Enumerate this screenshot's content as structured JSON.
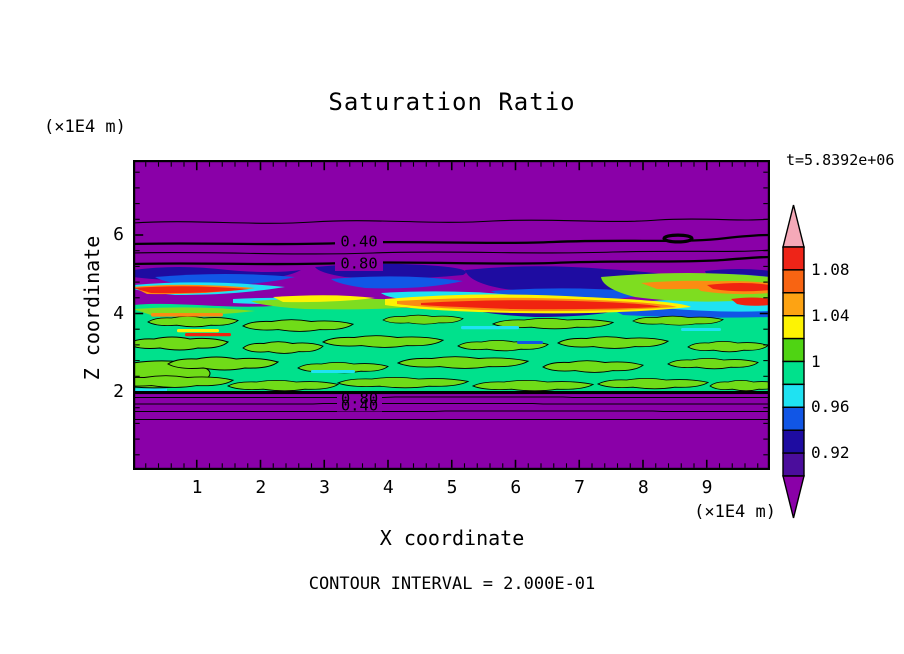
{
  "title": "Saturation Ratio",
  "time_label": "t=5.8392e+06",
  "footer": "CONTOUR INTERVAL = 2.000E-01",
  "axes": {
    "x_label": "X coordinate",
    "x_unit": "(×1E4 m)",
    "y_label": "Z coordinate",
    "y_unit": "(×1E4 m)",
    "x_ticks": [
      "1",
      "2",
      "3",
      "4",
      "5",
      "6",
      "7",
      "8",
      "9"
    ],
    "y_ticks": [
      "2",
      "4",
      "6"
    ]
  },
  "contour_labels": {
    "upper": [
      "0.40",
      "0.80"
    ],
    "lower": [
      "0.80",
      "0.40"
    ]
  },
  "colorbar": {
    "labels": [
      "1.08",
      "1.04",
      "1",
      "0.96",
      "0.92"
    ],
    "over_color": "#f5a9b8",
    "under_color": "#8a00a8",
    "cells": [
      {
        "color": "#ee2418",
        "range": "1.08-1.10"
      },
      {
        "color": "#f86412",
        "range": "1.06-1.08"
      },
      {
        "color": "#fda313",
        "range": "1.04-1.06"
      },
      {
        "color": "#fdf303",
        "range": "1.02-1.04"
      },
      {
        "color": "#4fd413",
        "range": "1.00-1.02"
      },
      {
        "color": "#00e18c",
        "range": "0.98-1.00"
      },
      {
        "color": "#1fe2f2",
        "range": "0.96-0.98"
      },
      {
        "color": "#1156e6",
        "range": "0.94-0.96"
      },
      {
        "color": "#1e0ca1",
        "range": "0.92-0.94"
      },
      {
        "color": "#4b0d9c",
        "range": "0.90-0.92"
      }
    ]
  },
  "field_colors": {
    "background": "#8a00a8",
    "band": "#00e18c",
    "blob": "#70dc18",
    "navy": "#1e0ca1",
    "blue": "#1156e6",
    "cyan": "#1fe2f2",
    "green": "#7edd20",
    "yellow": "#fdf303",
    "orange": "#fb8c12",
    "red": "#f02310"
  },
  "chart_data": {
    "type": "filled_contour",
    "variable": "saturation ratio",
    "title": "Saturation Ratio",
    "time_annotation": "t=5.8392e+06",
    "xlabel": "X coordinate",
    "x_unit": "(×1E4 m)",
    "ylabel": "Z coordinate",
    "y_unit": "(×1E4 m)",
    "xlim": [
      0,
      10
    ],
    "ylim": [
      0,
      7.9
    ],
    "x_ticks": [
      1,
      2,
      3,
      4,
      5,
      6,
      7,
      8,
      9
    ],
    "y_ticks": [
      2,
      4,
      6
    ],
    "fill_levels_min": 0.9,
    "fill_levels_max": 1.1,
    "fill_level_step": 0.02,
    "line_contour_interval": 0.2,
    "labeled_line_contours": [
      0.4,
      0.8
    ],
    "colorbar_tick_values": [
      1.08,
      1.04,
      1.0,
      0.96,
      0.92
    ],
    "structure": [
      {
        "z_range": [
          5.3,
          7.9
        ],
        "value": "< 0.2",
        "description": "uniform dry region (purple); line contours 0.80, 0.60, 0.40, 0.20 stacked near z≈5.2-6.3, small closed 0.40 contour near x≈8.3, z≈5.9"
      },
      {
        "z_range": [
          4.6,
          5.3
        ],
        "value": "0.90-0.98",
        "description": "subsaturated horizontal filaments: navy, blue and cyan streaks across full width"
      },
      {
        "z_range": [
          4.0,
          4.6
        ],
        "value": "1.02-1.10",
        "description": "supersaturated red/orange/yellow streaks, strongest at x≈4-9 and near both edges, fringed by yellow-green"
      },
      {
        "z_range": [
          2.0,
          4.2
        ],
        "value": "0.98-1.02",
        "description": "near-saturated teal band speckled with lime-green S=1 closed-contour patches and small cyan/yellow/red flecks"
      },
      {
        "z_range": [
          0,
          2.0
        ],
        "value": "< 0.2",
        "description": "uniform dry region (purple); line contours 1.0 (bold band edge), 0.80, 0.60, 0.40, 0.20 bunched just below z=2"
      }
    ]
  }
}
